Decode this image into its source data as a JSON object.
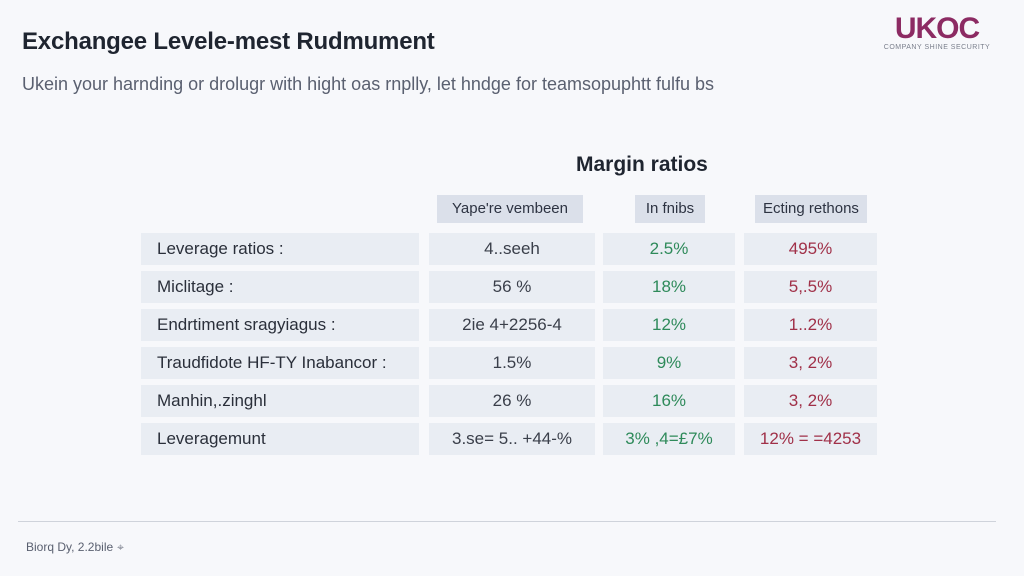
{
  "header": {
    "title": "Exchangee Levele-mest Rudmument",
    "subtitle": "Ukein your harnding or drolugr with hight oas rnplly, let hndge for teamsopuphtt fulfu bs"
  },
  "logo": {
    "mark": "UKOC",
    "tagline": "COMPANY SHINE SECURITY",
    "color": "#8c2b63"
  },
  "table": {
    "title": "Margin ratios",
    "columns": [
      "Yape're vembeen",
      "In fnibs",
      "Ecting rethons"
    ],
    "rows": [
      {
        "label": "Leverage ratios :",
        "values": [
          "4..seeh",
          "2.5%",
          "495%"
        ]
      },
      {
        "label": "Miclitage :",
        "values": [
          "56 %",
          "18%",
          "5,.5%"
        ]
      },
      {
        "label": "Endrtiment sragyiagus :",
        "values": [
          "2ie 4+2256-4",
          "12%",
          "1..2%"
        ]
      },
      {
        "label": "Traudfidote HF-TY Inabancor :",
        "values": [
          "1.5%",
          "9%",
          "3, 2%"
        ]
      },
      {
        "label": "Manhin,.zinghl",
        "values": [
          "26 %",
          "16%",
          "3, 2%"
        ]
      },
      {
        "label": "Leveragemunt",
        "values": [
          "3.se= 5.. +44-%",
          "3% ,4=£7%",
          "12% = =4253"
        ]
      }
    ],
    "colors": {
      "green": "#2e8a5a",
      "red": "#a03048",
      "cell_bg": "#e9edf3",
      "header_bg": "#dbe0ea"
    }
  },
  "footer": {
    "text": "Biorq Dy, 2.2bile",
    "icon": "pin-icon"
  }
}
